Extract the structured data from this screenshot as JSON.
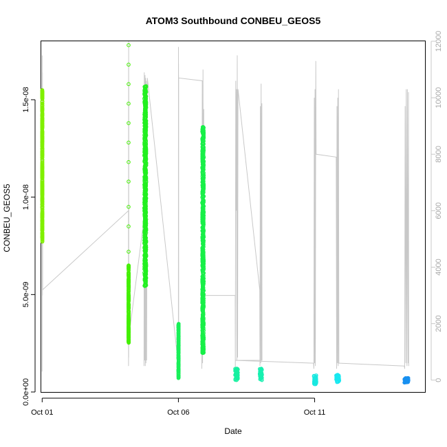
{
  "chart_data": {
    "type": "scatter",
    "title": "ATOM3 Southbound CONBEU_GEOS5",
    "xlabel": "Date",
    "ylabel": "CONBEU_GEOS5",
    "x_axis": {
      "scale": "date",
      "xlim": [
        "2016-09-30T23:12",
        "2016-10-15T01:12"
      ],
      "ticks": [
        {
          "value": "2016-10-01",
          "label": "Oct 01"
        },
        {
          "value": "2016-10-06",
          "label": "Oct 06"
        },
        {
          "value": "2016-10-11",
          "label": "Oct 11"
        }
      ]
    },
    "y_axis": {
      "ylim": [
        0,
        1.8e-08
      ],
      "ticks": [
        {
          "value": 0,
          "label": "0.0e+00"
        },
        {
          "value": 5e-09,
          "label": "5.0e-09"
        },
        {
          "value": 1e-08,
          "label": "1.0e-08"
        },
        {
          "value": 1.5e-08,
          "label": "1.5e-08"
        }
      ]
    },
    "y2_axis": {
      "ylim": [
        -420,
        12000
      ],
      "color": "#c8c8c8",
      "ticks": [
        {
          "value": 0,
          "label": "0"
        },
        {
          "value": 2000,
          "label": "2000"
        },
        {
          "value": 4000,
          "label": "4000"
        },
        {
          "value": 6000,
          "label": "6000"
        },
        {
          "value": 8000,
          "label": "8000"
        },
        {
          "value": 10000,
          "label": "10000"
        },
        {
          "value": 12000,
          "label": "12000"
        }
      ]
    },
    "grid": false,
    "series": [
      {
        "kind": "points",
        "role": "CONBEU_GEOS5 (left axis), point color by latitude",
        "flights": [
          {
            "start": "2016-10-01T00:00",
            "end": "2016-10-01T00:12",
            "y_min": 7.7e-09,
            "y_max": 1.55e-08,
            "color": "#80f000"
          },
          {
            "start": "2016-10-04T04:00",
            "end": "2016-10-04T04:15",
            "y_min": 2.5e-09,
            "y_max": 6.5e-09,
            "color": "#44f000",
            "isolated": [
              1.78e-08,
              1.68e-08,
              1.58e-08,
              1.48e-08,
              1.38e-08,
              1.28e-08,
              1.18e-08,
              1.08e-08,
              9.5e-09,
              8.5e-09,
              7.2e-09
            ]
          },
          {
            "start": "2016-10-04T18:00",
            "end": "2016-10-04T19:40",
            "y_min": 5.4e-09,
            "y_max": 1.57e-08,
            "color": "#22f020"
          },
          {
            "start": "2016-10-06T00:00",
            "end": "2016-10-06T00:14",
            "y_min": 7e-10,
            "y_max": 3.5e-09,
            "color": "#18f058"
          },
          {
            "start": "2016-10-06T21:00",
            "end": "2016-10-06T22:20",
            "y_min": 2e-09,
            "y_max": 1.36e-08,
            "color": "#18f048",
            "isolated": [
              1.22e-08,
              1.12e-08,
              1.05e-08
            ]
          },
          {
            "start": "2016-10-08T02:00",
            "end": "2016-10-08T04:30",
            "y_min": 6e-10,
            "y_max": 1.2e-09,
            "color": "#18f0a0"
          },
          {
            "start": "2016-10-08T23:40",
            "end": "2016-10-09T01:40",
            "y_min": 6e-10,
            "y_max": 1.2e-09,
            "color": "#18f0b0"
          },
          {
            "start": "2016-10-10T23:20",
            "end": "2016-10-11T01:30",
            "y_min": 4e-10,
            "y_max": 8.5e-10,
            "color": "#18e8e0"
          },
          {
            "start": "2016-10-11T19:00",
            "end": "2016-10-11T21:40",
            "y_min": 5e-10,
            "y_max": 9e-10,
            "color": "#18e8f0"
          },
          {
            "start": "2016-10-14T07:00",
            "end": "2016-10-14T10:40",
            "y_min": 4.8e-10,
            "y_max": 7.2e-10,
            "color": "#1890f0"
          }
        ]
      },
      {
        "kind": "line",
        "role": "altitude trace (right axis)",
        "color": "#c8c8c8",
        "points": [
          [
            "2016-10-01T00:00",
            300
          ],
          [
            "2016-10-01T00:02",
            10000
          ],
          [
            "2016-10-01T00:03",
            3500
          ],
          [
            "2016-10-01T00:06",
            11500
          ],
          [
            "2016-10-01T00:08",
            7200
          ],
          [
            "2016-10-01T00:10",
            9800
          ],
          [
            "2016-10-01T00:12",
            3000
          ],
          [
            "2016-10-01T00:14",
            10900
          ],
          [
            "2016-10-01T00:24",
            3200
          ],
          [
            "2016-10-04T04:00",
            6000
          ],
          [
            "2016-10-04T04:04",
            500
          ],
          [
            "2016-10-04T04:06",
            11300
          ],
          [
            "2016-10-04T04:08",
            1300
          ],
          [
            "2016-10-04T04:10",
            12000
          ],
          [
            "2016-10-04T04:12",
            800
          ],
          [
            "2016-10-04T04:14",
            10500
          ],
          [
            "2016-10-04T04:16",
            1500
          ],
          [
            "2016-10-04T18:00",
            5800
          ],
          [
            "2016-10-04T17:40",
            500
          ],
          [
            "2016-10-04T17:55",
            10900
          ],
          [
            "2016-10-04T18:15",
            700
          ],
          [
            "2016-10-04T18:35",
            10800
          ],
          [
            "2016-10-04T18:50",
            500
          ],
          [
            "2016-10-04T19:10",
            10700
          ],
          [
            "2016-10-04T19:25",
            600
          ],
          [
            "2016-10-04T19:40",
            10600
          ],
          [
            "2016-10-04T19:45",
            2800
          ],
          [
            "2016-10-04T20:00",
            700
          ],
          [
            "2016-10-04T20:40",
            10700
          ],
          [
            "2016-10-06T00:00",
            500
          ],
          [
            "2016-10-06T00:02",
            11800
          ],
          [
            "2016-10-06T00:04",
            7000
          ],
          [
            "2016-10-06T00:06",
            11200
          ],
          [
            "2016-10-06T00:08",
            600
          ],
          [
            "2016-10-06T00:10",
            10800
          ],
          [
            "2016-10-06T00:12",
            2000
          ],
          [
            "2016-10-06T00:14",
            10700
          ],
          [
            "2016-10-06T21:00",
            10600
          ],
          [
            "2016-10-06T20:40",
            400
          ],
          [
            "2016-10-06T21:00",
            10200
          ],
          [
            "2016-10-06T21:20",
            600
          ],
          [
            "2016-10-06T21:40",
            11000
          ],
          [
            "2016-10-06T22:00",
            1000
          ],
          [
            "2016-10-06T22:20",
            9600
          ],
          [
            "2016-10-06T22:30",
            3000
          ],
          [
            "2016-10-08T02:00",
            3000
          ],
          [
            "2016-10-08T02:10",
            300
          ],
          [
            "2016-10-08T02:30",
            10600
          ],
          [
            "2016-10-08T02:50",
            6000
          ],
          [
            "2016-10-08T03:10",
            10300
          ],
          [
            "2016-10-08T03:30",
            700
          ],
          [
            "2016-10-08T03:50",
            11500
          ],
          [
            "2016-10-08T04:10",
            800
          ],
          [
            "2016-10-08T04:30",
            10300
          ],
          [
            "2016-10-08T23:40",
            3200
          ],
          [
            "2016-10-08T23:50",
            500
          ],
          [
            "2016-10-09T00:10",
            9700
          ],
          [
            "2016-10-09T00:30",
            600
          ],
          [
            "2016-10-09T00:50",
            10500
          ],
          [
            "2016-10-09T01:10",
            700
          ],
          [
            "2016-10-09T01:30",
            9800
          ],
          [
            "2016-10-09T01:40",
            700
          ],
          [
            "2016-10-08T02:00",
            700
          ],
          [
            "2016-10-10T23:00",
            600
          ],
          [
            "2016-10-10T23:20",
            400
          ],
          [
            "2016-10-10T23:40",
            10000
          ],
          [
            "2016-10-11T00:00",
            600
          ],
          [
            "2016-10-11T00:20",
            10300
          ],
          [
            "2016-10-11T00:40",
            500
          ],
          [
            "2016-10-11T01:00",
            11300
          ],
          [
            "2016-10-11T01:20",
            8000
          ],
          [
            "2016-10-11T19:00",
            7900
          ],
          [
            "2016-10-11T19:20",
            400
          ],
          [
            "2016-10-11T19:40",
            9700
          ],
          [
            "2016-10-11T20:00",
            600
          ],
          [
            "2016-10-11T20:20",
            10000
          ],
          [
            "2016-10-11T20:40",
            500
          ],
          [
            "2016-10-11T21:00",
            10300
          ],
          [
            "2016-10-11T21:20",
            600
          ],
          [
            "2016-10-11T21:40",
            600
          ],
          [
            "2016-10-14T07:00",
            500
          ],
          [
            "2016-10-14T07:20",
            400
          ],
          [
            "2016-10-14T07:40",
            9700
          ],
          [
            "2016-10-14T08:20",
            600
          ],
          [
            "2016-10-14T08:40",
            10300
          ],
          [
            "2016-10-14T09:20",
            500
          ],
          [
            "2016-10-14T09:40",
            10300
          ],
          [
            "2016-10-14T10:20",
            600
          ],
          [
            "2016-10-14T10:40",
            10200
          ],
          [
            "2016-10-14T10:50",
            500
          ]
        ]
      }
    ]
  }
}
